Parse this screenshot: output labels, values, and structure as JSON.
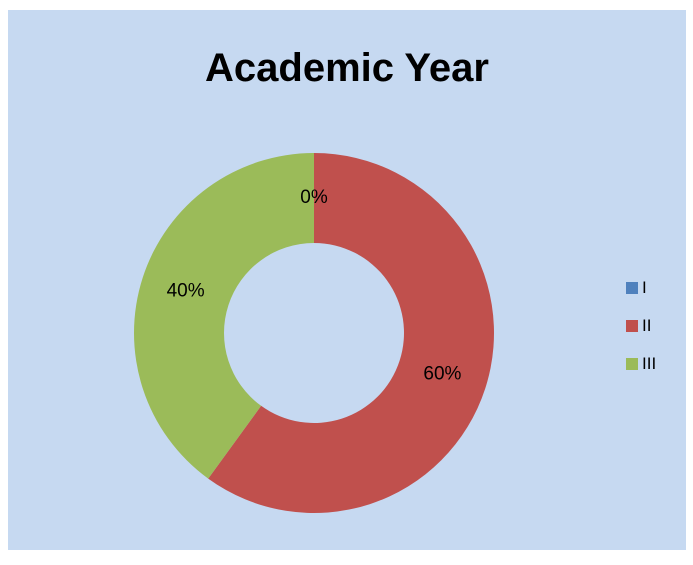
{
  "chart_data": {
    "type": "pie",
    "variant": "doughnut",
    "title": "Academic Year",
    "categories": [
      "I",
      "II",
      "III"
    ],
    "values": [
      0,
      60,
      40
    ],
    "data_labels": [
      "0%",
      "60%",
      "40%"
    ],
    "colors": [
      "#4f81bd",
      "#c0504d",
      "#9bbb59"
    ],
    "legend": "right",
    "background": "#c6d9f1"
  }
}
